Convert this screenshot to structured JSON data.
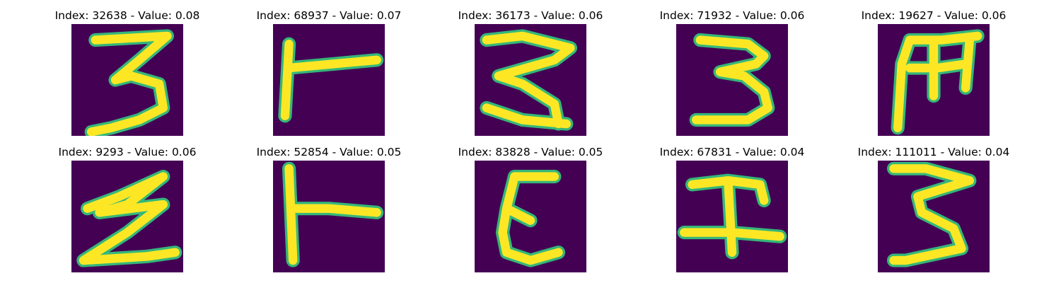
{
  "colors": {
    "background": "#440154",
    "stroke_outer": "#35b779",
    "stroke_inner": "#fde725"
  },
  "panels": [
    {
      "title": "Index: 32638 - Value: 0.08",
      "glyph": "3"
    },
    {
      "title": "Index: 68937 - Value: 0.07",
      "glyph": "T-rotated"
    },
    {
      "title": "Index: 36173 - Value: 0.06",
      "glyph": "3"
    },
    {
      "title": "Index: 71932 - Value: 0.06",
      "glyph": "3"
    },
    {
      "title": "Index: 19627 - Value: 0.06",
      "glyph": "M-like"
    },
    {
      "title": "Index: 9293 - Value: 0.06",
      "glyph": "Z-like"
    },
    {
      "title": "Index: 52854 - Value: 0.05",
      "glyph": "T-rotated"
    },
    {
      "title": "Index: 83828 - Value: 0.05",
      "glyph": "epsilon"
    },
    {
      "title": "Index: 67831 - Value: 0.04",
      "glyph": "H-like"
    },
    {
      "title": "Index: 111011 - Value: 0.04",
      "glyph": "3"
    }
  ]
}
